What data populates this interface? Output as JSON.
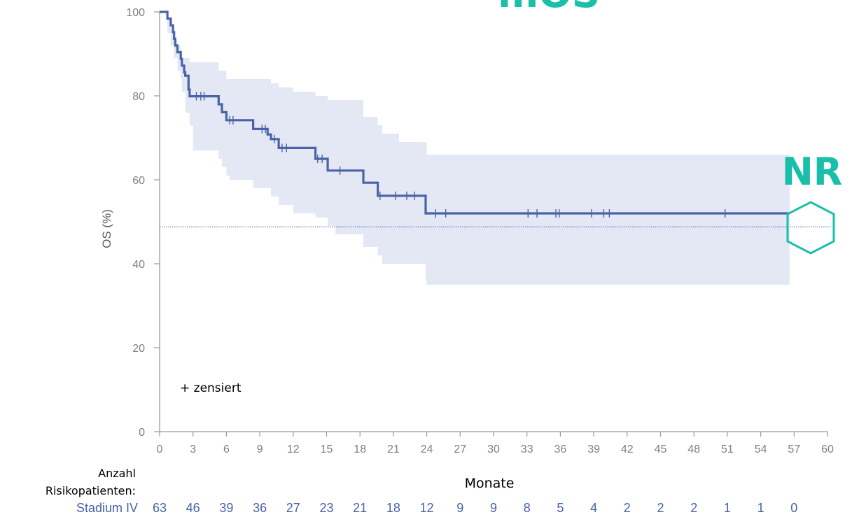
{
  "header": {
    "title_partial": "mOS"
  },
  "result_label": "NR",
  "censor_legend": "+ zensiert",
  "risk_table": {
    "heading_line1": "Anzahl",
    "heading_line2": "Risikopatienten:",
    "group": "Stadium IV",
    "values": [
      "63",
      "46",
      "39",
      "36",
      "27",
      "23",
      "21",
      "18",
      "12",
      "9",
      "9",
      "8",
      "5",
      "4",
      "2",
      "2",
      "2",
      "1",
      "1",
      "0"
    ]
  },
  "colors": {
    "curve": "#4a62a8",
    "ci_band": "#e4e8f5",
    "accent": "#19bfa8",
    "axis": "#808080"
  },
  "chart_data": {
    "type": "line",
    "subtype": "kaplan-meier",
    "xlabel": "Monate",
    "ylabel": "OS (%)",
    "xlim": [
      0,
      60
    ],
    "ylim": [
      0,
      100
    ],
    "xticks": [
      0,
      3,
      6,
      9,
      12,
      15,
      18,
      21,
      24,
      27,
      30,
      33,
      36,
      39,
      42,
      45,
      48,
      51,
      54,
      57,
      60
    ],
    "yticks": [
      0,
      20,
      40,
      60,
      80,
      100
    ],
    "grid": false,
    "median_reference_line": 48.8,
    "series": [
      {
        "name": "Stadium IV",
        "steps": [
          [
            0,
            100
          ],
          [
            0.7,
            100
          ],
          [
            0.7,
            98.4
          ],
          [
            1.0,
            98.4
          ],
          [
            1.0,
            96.8
          ],
          [
            1.2,
            96.8
          ],
          [
            1.2,
            95.2
          ],
          [
            1.3,
            95.2
          ],
          [
            1.3,
            93.6
          ],
          [
            1.4,
            93.6
          ],
          [
            1.4,
            92.0
          ],
          [
            1.6,
            92.0
          ],
          [
            1.6,
            90.4
          ],
          [
            1.9,
            90.4
          ],
          [
            1.9,
            88.8
          ],
          [
            2.0,
            88.8
          ],
          [
            2.0,
            87.2
          ],
          [
            2.2,
            87.2
          ],
          [
            2.2,
            85.6
          ],
          [
            2.3,
            85.6
          ],
          [
            2.3,
            84.8
          ],
          [
            2.6,
            84.8
          ],
          [
            2.6,
            81.5
          ],
          [
            2.7,
            81.5
          ],
          [
            2.7,
            79.9
          ],
          [
            5.3,
            79.9
          ],
          [
            5.3,
            78.0
          ],
          [
            5.6,
            78.0
          ],
          [
            5.6,
            76.1
          ],
          [
            6.0,
            76.1
          ],
          [
            6.0,
            74.2
          ],
          [
            8.4,
            74.2
          ],
          [
            8.4,
            72.1
          ],
          [
            9.7,
            72.1
          ],
          [
            9.7,
            70.8
          ],
          [
            10.0,
            70.8
          ],
          [
            10.0,
            69.7
          ],
          [
            10.7,
            69.7
          ],
          [
            10.7,
            67.6
          ],
          [
            14.0,
            67.6
          ],
          [
            14.0,
            65.0
          ],
          [
            15.1,
            65.0
          ],
          [
            15.1,
            62.2
          ],
          [
            18.3,
            62.2
          ],
          [
            18.3,
            59.3
          ],
          [
            19.6,
            59.3
          ],
          [
            19.6,
            56.2
          ],
          [
            23.9,
            56.2
          ],
          [
            23.9,
            52.0
          ],
          [
            56.6,
            52.0
          ]
        ],
        "censored": [
          [
            3.3,
            79.9
          ],
          [
            3.7,
            79.9
          ],
          [
            4.0,
            79.9
          ],
          [
            6.3,
            74.2
          ],
          [
            6.6,
            74.2
          ],
          [
            9.2,
            72.1
          ],
          [
            9.5,
            72.1
          ],
          [
            10.3,
            69.7
          ],
          [
            11.0,
            67.6
          ],
          [
            11.4,
            67.6
          ],
          [
            14.2,
            65.0
          ],
          [
            14.6,
            65.0
          ],
          [
            16.2,
            62.2
          ],
          [
            19.8,
            56.2
          ],
          [
            21.2,
            56.2
          ],
          [
            22.2,
            56.2
          ],
          [
            22.9,
            56.2
          ],
          [
            24.8,
            52.0
          ],
          [
            25.7,
            52.0
          ],
          [
            33.1,
            52.0
          ],
          [
            33.9,
            52.0
          ],
          [
            35.6,
            52.0
          ],
          [
            35.9,
            52.0
          ],
          [
            38.8,
            52.0
          ],
          [
            39.9,
            52.0
          ],
          [
            40.4,
            52.0
          ],
          [
            50.8,
            52.0
          ]
        ],
        "ci": [
          [
            0,
            100,
            100
          ],
          [
            0.7,
            98,
            95
          ],
          [
            1.0,
            96,
            92
          ],
          [
            1.3,
            93,
            89
          ],
          [
            1.6,
            92,
            86
          ],
          [
            1.9,
            91,
            84
          ],
          [
            2.0,
            89,
            81
          ],
          [
            2.3,
            89,
            76
          ],
          [
            2.7,
            88,
            73
          ],
          [
            3.0,
            88,
            67
          ],
          [
            5.3,
            86,
            65
          ],
          [
            5.6,
            86,
            63
          ],
          [
            6.0,
            84,
            61
          ],
          [
            6.3,
            84,
            60
          ],
          [
            8.4,
            84,
            58
          ],
          [
            10.0,
            83,
            56
          ],
          [
            10.7,
            82,
            54
          ],
          [
            12.0,
            81,
            52
          ],
          [
            14.0,
            80,
            51
          ],
          [
            15.1,
            79,
            49
          ],
          [
            15.8,
            79,
            47
          ],
          [
            18.3,
            75,
            44
          ],
          [
            19.6,
            73,
            42
          ],
          [
            20.0,
            71,
            40
          ],
          [
            21.5,
            69,
            40
          ],
          [
            23.9,
            69,
            36
          ],
          [
            24.0,
            66,
            35
          ],
          [
            56.6,
            66,
            35
          ]
        ]
      }
    ]
  }
}
